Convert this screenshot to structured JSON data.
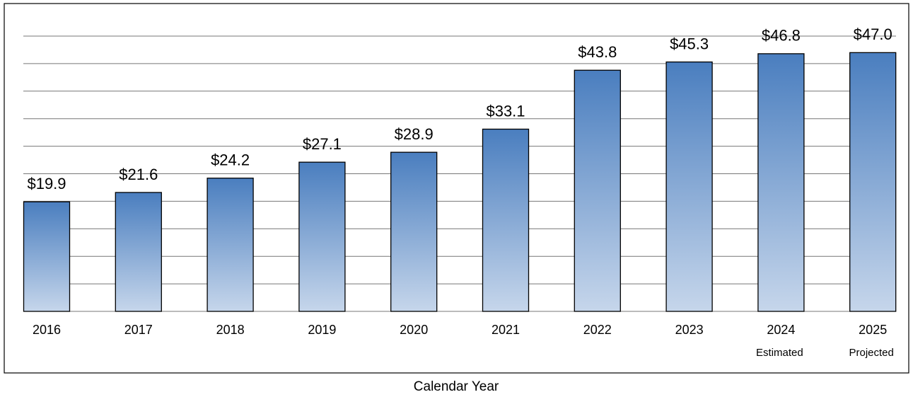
{
  "chart_data": {
    "type": "bar",
    "x_label": "Calendar Year",
    "categories": [
      "2016",
      "2017",
      "2018",
      "2019",
      "2020",
      "2021",
      "2022",
      "2023",
      "2024",
      "2025"
    ],
    "category_notes": [
      null,
      null,
      null,
      null,
      null,
      null,
      null,
      null,
      "Estimated",
      "Projected"
    ],
    "values": [
      19.9,
      21.6,
      24.2,
      27.1,
      28.9,
      33.1,
      43.8,
      45.3,
      46.8,
      47.0
    ],
    "value_labels": [
      "$19.9",
      "$21.6",
      "$24.2",
      "$27.1",
      "$28.9",
      "$33.1",
      "$43.8",
      "$45.3",
      "$46.8",
      "$47.0"
    ],
    "color": [
      "#4a7ebf",
      "#c6d6eb"
    ],
    "ylim": [
      0,
      50
    ],
    "yticks": [
      0,
      5,
      10,
      15,
      20,
      25,
      30,
      35,
      40,
      45,
      50
    ],
    "grid": true
  }
}
